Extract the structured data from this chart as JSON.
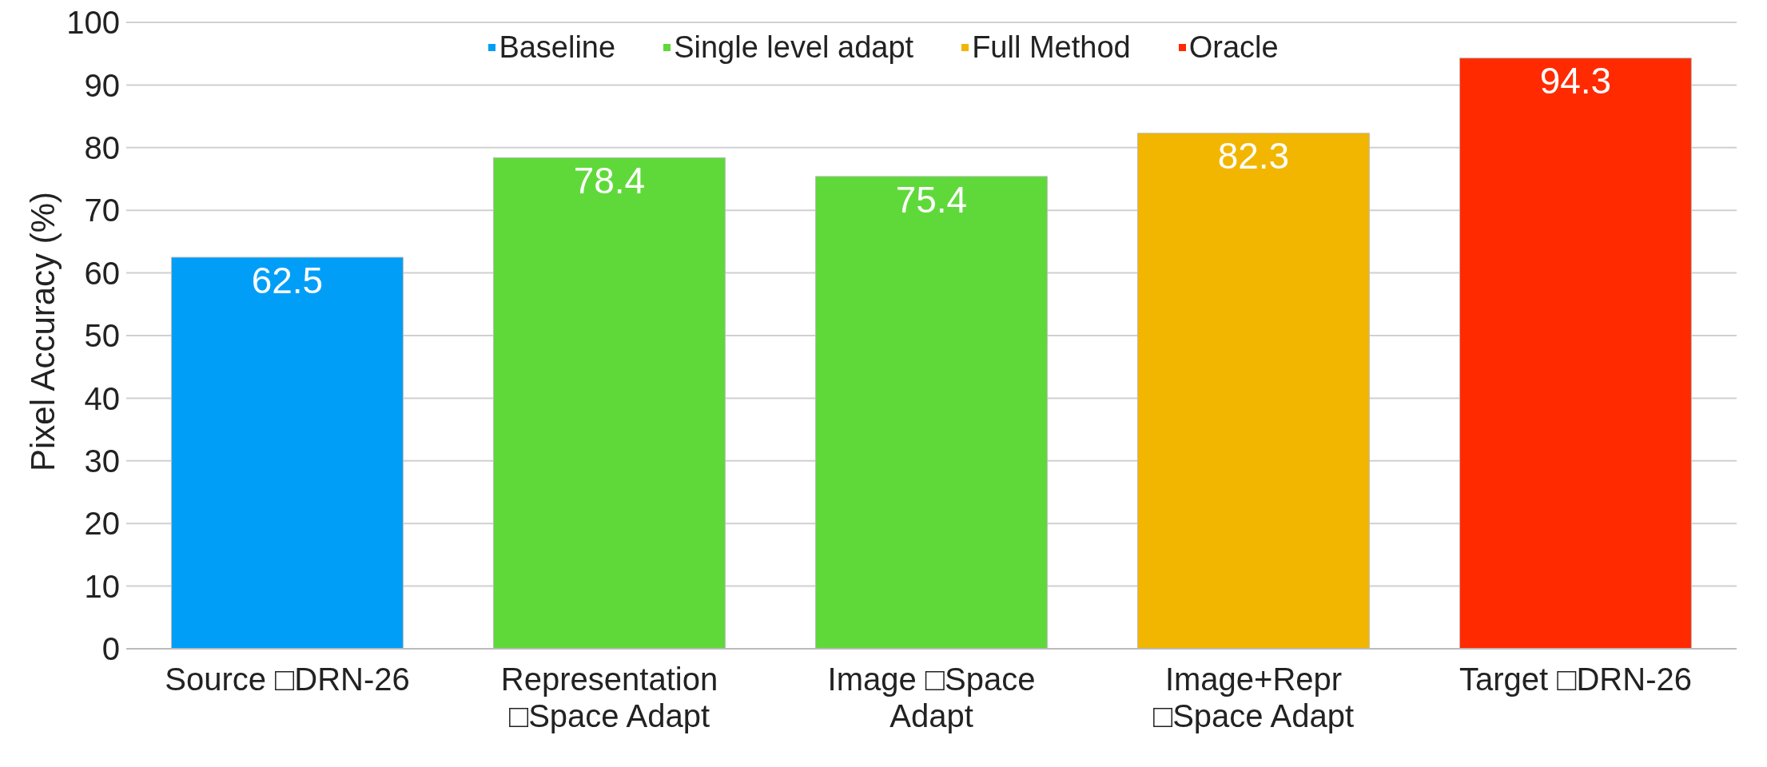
{
  "chart_data": {
    "type": "bar",
    "ylabel": "Pixel Accuracy (%)",
    "categories": [
      "Source □DRN-26",
      "Representation □Space Adapt",
      "Image □Space Adapt",
      "Image+Repr □Space Adapt",
      "Target □DRN-26"
    ],
    "series": [
      {
        "name": "Baseline",
        "color": "#009ef7",
        "values": [
          62.5,
          null,
          null,
          null,
          null
        ]
      },
      {
        "name": "Single level adapt",
        "color": "#5fd93a",
        "values": [
          null,
          78.4,
          75.4,
          null,
          null
        ]
      },
      {
        "name": "Full Method",
        "color": "#f2b600",
        "values": [
          null,
          null,
          null,
          82.3,
          null
        ]
      },
      {
        "name": "Oracle",
        "color": "#ff2a00",
        "values": [
          null,
          null,
          null,
          null,
          94.3
        ]
      }
    ],
    "stacked": true,
    "ylim": [
      0,
      100
    ],
    "yticks": [
      0,
      10,
      20,
      30,
      40,
      50,
      60,
      70,
      80,
      90,
      100
    ],
    "grid": "y",
    "legend": "top",
    "data_labels": true
  }
}
